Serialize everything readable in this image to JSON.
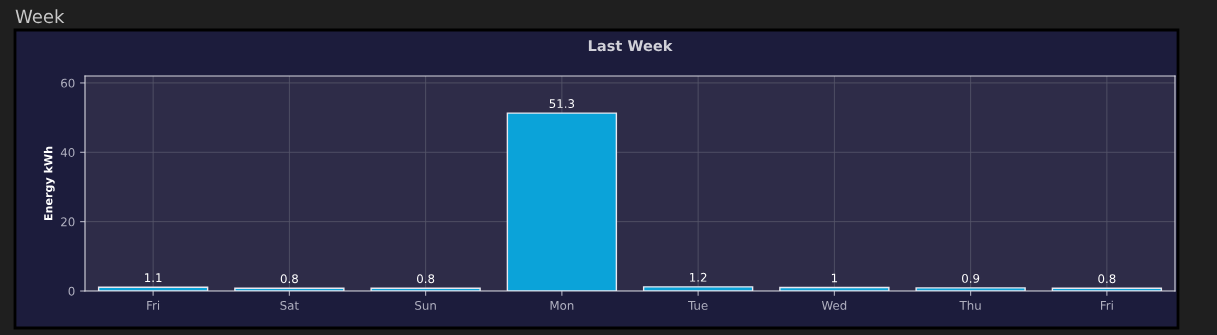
{
  "chart_data": {
    "type": "bar",
    "title": "Last Week",
    "ylabel": "Energy kWh",
    "annotations": [
      "Week"
    ],
    "categories": [
      "Fri",
      "Sat",
      "Sun",
      "Mon",
      "Tue",
      "Wed",
      "Thu",
      "Fri"
    ],
    "values": [
      1.1,
      0.8,
      0.8,
      51.3,
      1.2,
      1,
      0.9,
      0.8
    ],
    "color": "#0ba3d9",
    "data_labels": true,
    "grid": true,
    "ylim": [
      0,
      62
    ],
    "yticks": [
      0,
      20,
      40,
      60
    ]
  }
}
